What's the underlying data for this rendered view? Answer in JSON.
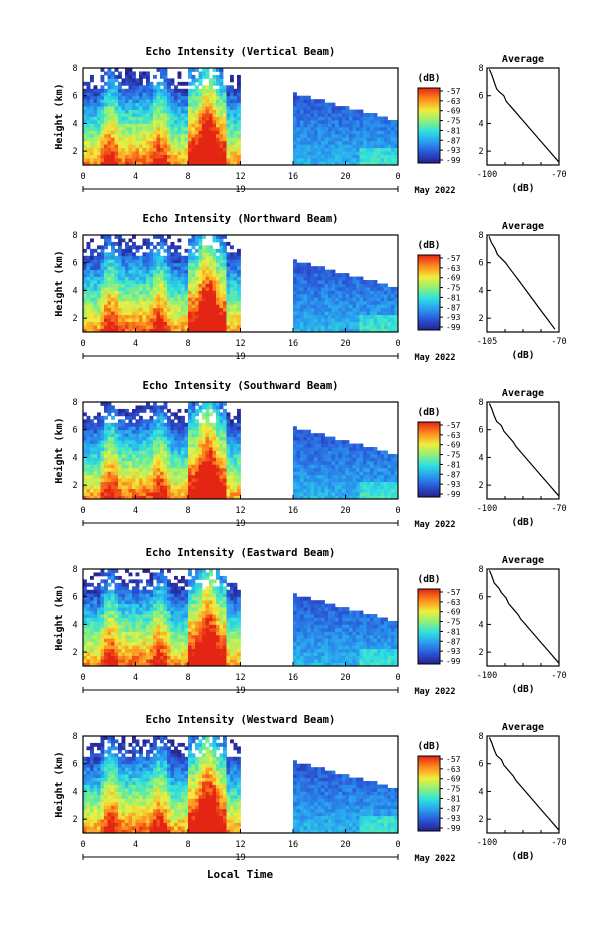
{
  "figure": {
    "xlabel": "Local Time",
    "date_label": "May 2022",
    "day_label": "19",
    "colorbar_unit": "(dB)"
  },
  "chart_data": [
    {
      "type": "heatmap",
      "title": "Echo Intensity (Vertical Beam)",
      "ylabel": "Height (km)",
      "xlim": [
        0,
        24
      ],
      "ylim": [
        1,
        8
      ],
      "xticks": [
        "0",
        "4",
        "8",
        "12",
        "16",
        "20",
        "0"
      ],
      "yticks": [
        "2",
        "4",
        "6",
        "8"
      ],
      "colorbar": {
        "label": "(dB)",
        "ticks": [
          "-57",
          "-63",
          "-69",
          "-75",
          "-81",
          "-87",
          "-93",
          "-99"
        ],
        "range": [
          -99,
          -57
        ]
      },
      "gap": [
        12,
        16
      ]
    },
    {
      "type": "heatmap",
      "title": "Echo Intensity (Northward Beam)",
      "ylabel": "Height (km)",
      "xlim": [
        0,
        24
      ],
      "ylim": [
        1,
        8
      ],
      "xticks": [
        "0",
        "4",
        "8",
        "12",
        "16",
        "20",
        "0"
      ],
      "yticks": [
        "2",
        "4",
        "6",
        "8"
      ],
      "colorbar": {
        "label": "(dB)",
        "ticks": [
          "-57",
          "-63",
          "-69",
          "-75",
          "-81",
          "-87",
          "-93",
          "-99"
        ],
        "range": [
          -99,
          -57
        ]
      },
      "gap": [
        12,
        16
      ]
    },
    {
      "type": "heatmap",
      "title": "Echo Intensity (Southward Beam)",
      "ylabel": "Height (km)",
      "xlim": [
        0,
        24
      ],
      "ylim": [
        1,
        8
      ],
      "xticks": [
        "0",
        "4",
        "8",
        "12",
        "16",
        "20",
        "0"
      ],
      "yticks": [
        "2",
        "4",
        "6",
        "8"
      ],
      "colorbar": {
        "label": "(dB)",
        "ticks": [
          "-57",
          "-63",
          "-69",
          "-75",
          "-81",
          "-87",
          "-93",
          "-99"
        ],
        "range": [
          -99,
          -57
        ]
      },
      "gap": [
        12,
        16
      ]
    },
    {
      "type": "heatmap",
      "title": "Echo Intensity (Eastward Beam)",
      "ylabel": "Height (km)",
      "xlim": [
        0,
        24
      ],
      "ylim": [
        1,
        8
      ],
      "xticks": [
        "0",
        "4",
        "8",
        "12",
        "16",
        "20",
        "0"
      ],
      "yticks": [
        "2",
        "4",
        "6",
        "8"
      ],
      "colorbar": {
        "label": "(dB)",
        "ticks": [
          "-57",
          "-63",
          "-69",
          "-75",
          "-81",
          "-87",
          "-93",
          "-99"
        ],
        "range": [
          -99,
          -57
        ]
      },
      "gap": [
        12,
        16
      ]
    },
    {
      "type": "heatmap",
      "title": "Echo Intensity (Westward Beam)",
      "ylabel": "Height (km)",
      "xlim": [
        0,
        24
      ],
      "ylim": [
        1,
        8
      ],
      "xticks": [
        "0",
        "4",
        "8",
        "12",
        "16",
        "20",
        "0"
      ],
      "yticks": [
        "2",
        "4",
        "6",
        "8"
      ],
      "colorbar": {
        "label": "(dB)",
        "ticks": [
          "-57",
          "-63",
          "-69",
          "-75",
          "-81",
          "-87",
          "-93",
          "-99"
        ],
        "range": [
          -99,
          -57
        ]
      },
      "gap": [
        12,
        16
      ]
    },
    {
      "type": "line",
      "title": "Average",
      "xlabel": "(dB)",
      "xlim": [
        -100,
        -70
      ],
      "xticks": [
        "-100",
        "-70"
      ],
      "ylim": [
        1,
        8
      ],
      "yticks": [
        "2",
        "4",
        "6",
        "8"
      ],
      "series": [
        {
          "x": [
            -99,
            -98,
            -97,
            -96,
            -95,
            -93,
            -92,
            -90,
            -88,
            -86,
            -84,
            -82,
            -80,
            -78,
            -76,
            -74,
            -72,
            -70
          ],
          "y": [
            7.9,
            7.5,
            7.0,
            6.5,
            6.3,
            6.0,
            5.6,
            5.2,
            4.8,
            4.4,
            4.0,
            3.6,
            3.2,
            2.8,
            2.4,
            2.0,
            1.6,
            1.2
          ]
        }
      ]
    },
    {
      "type": "line",
      "title": "Average",
      "xlabel": "(dB)",
      "xlim": [
        -105,
        -70
      ],
      "xticks": [
        "-105",
        "-70"
      ],
      "ylim": [
        1,
        8
      ],
      "yticks": [
        "2",
        "4",
        "6",
        "8"
      ],
      "series": [
        {
          "x": [
            -104,
            -103,
            -101,
            -100,
            -98,
            -96,
            -94,
            -92,
            -90,
            -88,
            -86,
            -84,
            -82,
            -80,
            -78,
            -76,
            -74,
            -72
          ],
          "y": [
            7.9,
            7.5,
            7.0,
            6.6,
            6.3,
            6.0,
            5.6,
            5.2,
            4.8,
            4.4,
            4.0,
            3.6,
            3.2,
            2.8,
            2.4,
            2.0,
            1.6,
            1.2
          ]
        }
      ]
    },
    {
      "type": "line",
      "title": "Average",
      "xlabel": "(dB)",
      "xlim": [
        -100,
        -70
      ],
      "xticks": [
        "-100",
        "-70"
      ],
      "ylim": [
        1,
        8
      ],
      "yticks": [
        "2",
        "4",
        "6",
        "8"
      ],
      "series": [
        {
          "x": [
            -99,
            -98,
            -97,
            -96,
            -94,
            -93,
            -91,
            -89,
            -88,
            -86,
            -84,
            -82,
            -80,
            -78,
            -76,
            -74,
            -72,
            -70
          ],
          "y": [
            7.9,
            7.5,
            7.0,
            6.6,
            6.3,
            5.9,
            5.5,
            5.1,
            4.8,
            4.4,
            4.0,
            3.6,
            3.2,
            2.8,
            2.4,
            2.0,
            1.6,
            1.2
          ]
        }
      ]
    },
    {
      "type": "line",
      "title": "Average",
      "xlabel": "(dB)",
      "xlim": [
        -100,
        -70
      ],
      "xticks": [
        "-100",
        "-70"
      ],
      "ylim": [
        1,
        8
      ],
      "yticks": [
        "2",
        "4",
        "6",
        "8"
      ],
      "series": [
        {
          "x": [
            -99,
            -98,
            -97,
            -95,
            -94,
            -92,
            -91,
            -89,
            -87,
            -86,
            -84,
            -82,
            -80,
            -78,
            -76,
            -74,
            -72,
            -70
          ],
          "y": [
            7.9,
            7.5,
            7.0,
            6.6,
            6.3,
            5.9,
            5.5,
            5.1,
            4.7,
            4.4,
            4.0,
            3.6,
            3.2,
            2.8,
            2.4,
            2.0,
            1.6,
            1.2
          ]
        }
      ]
    },
    {
      "type": "line",
      "title": "Average",
      "xlabel": "(dB)",
      "xlim": [
        -100,
        -70
      ],
      "xticks": [
        "-100",
        "-70"
      ],
      "ylim": [
        1,
        8
      ],
      "yticks": [
        "2",
        "4",
        "6",
        "8"
      ],
      "series": [
        {
          "x": [
            -99,
            -98,
            -97,
            -96,
            -94,
            -93,
            -91,
            -89,
            -88,
            -86,
            -84,
            -82,
            -80,
            -78,
            -76,
            -74,
            -72,
            -70
          ],
          "y": [
            7.9,
            7.5,
            7.0,
            6.6,
            6.3,
            5.9,
            5.5,
            5.1,
            4.8,
            4.4,
            4.0,
            3.6,
            3.2,
            2.8,
            2.4,
            2.0,
            1.6,
            1.2
          ]
        }
      ]
    }
  ]
}
